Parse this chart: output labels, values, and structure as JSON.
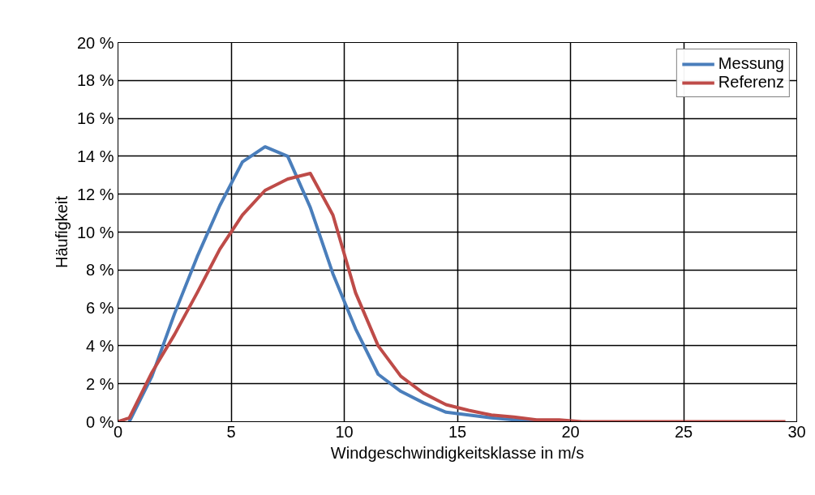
{
  "chart_data": {
    "type": "line",
    "xlabel": "Windgeschwindigkeitsklasse in m/s",
    "ylabel": "Häufigkeit",
    "xlim": [
      0,
      30
    ],
    "xticks": [
      0,
      5,
      10,
      15,
      20,
      25,
      30
    ],
    "ylim": [
      0,
      20
    ],
    "yticks": [
      {
        "value": 0,
        "label": "0 %"
      },
      {
        "value": 2,
        "label": "2 %"
      },
      {
        "value": 4,
        "label": "4 %"
      },
      {
        "value": 6,
        "label": "6 %"
      },
      {
        "value": 8,
        "label": "8 %"
      },
      {
        "value": 10,
        "label": "10 %"
      },
      {
        "value": 12,
        "label": "12 %"
      },
      {
        "value": 14,
        "label": "14 %"
      },
      {
        "value": 16,
        "label": "16 %"
      },
      {
        "value": 18,
        "label": "18 %"
      },
      {
        "value": 20,
        "label": "20 %"
      }
    ],
    "grid": true,
    "legend": "top right",
    "marker": "none",
    "line_style": "solid",
    "series": [
      {
        "name": "Messung",
        "color": "#4a7ebb",
        "x": [
          0.5,
          1.5,
          2.5,
          3.5,
          4.5,
          5.5,
          6.5,
          7.5,
          8.5,
          9.5,
          10.5,
          11.5,
          12.5,
          13.5,
          14.5,
          15.5,
          16.5,
          17.5,
          18.5,
          19.5
        ],
        "values": [
          0,
          2.4,
          5.7,
          8.7,
          11.4,
          13.7,
          14.5,
          14.0,
          11.3,
          7.8,
          4.9,
          2.5,
          1.6,
          1.0,
          0.5,
          0.35,
          0.2,
          0.1,
          0,
          0
        ]
      },
      {
        "name": "Referenz",
        "color": "#be4b48",
        "x": [
          0,
          0.5,
          1.5,
          2.5,
          3.5,
          4.5,
          5.5,
          6.5,
          7.5,
          8.5,
          9.5,
          10.5,
          11.5,
          12.5,
          13.5,
          14.5,
          15.5,
          16.5,
          17.5,
          18.5,
          19.5,
          20.5,
          21.5,
          22.5,
          23.5,
          24.5,
          25.5,
          26.5,
          27.5,
          28.5,
          29.5
        ],
        "values": [
          0,
          0.2,
          2.6,
          4.6,
          6.8,
          9.1,
          10.9,
          12.2,
          12.8,
          13.1,
          10.9,
          6.8,
          4.0,
          2.4,
          1.5,
          0.9,
          0.6,
          0.35,
          0.25,
          0.1,
          0.1,
          0,
          0,
          0,
          0,
          0,
          0,
          0,
          0,
          0,
          0
        ]
      }
    ]
  }
}
